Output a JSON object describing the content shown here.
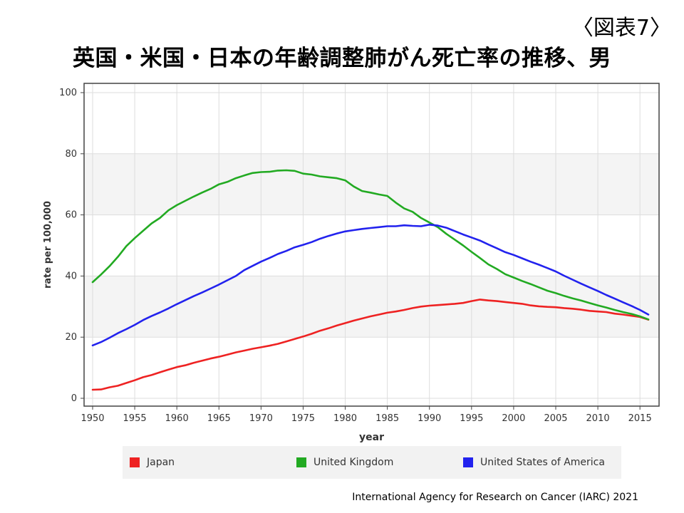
{
  "figure_label": "〈図表7〉",
  "title": "英国・米国・日本の年齢調整肺がん死亡率の推移、男",
  "source": "International Agency for Research on Cancer (IARC) 2021",
  "chart_data": {
    "type": "line",
    "xlabel": "year",
    "ylabel": "rate per 100,000",
    "xlim": [
      1950,
      2016
    ],
    "ylim": [
      0,
      100
    ],
    "x_ticks": [
      1950,
      1955,
      1960,
      1965,
      1970,
      1975,
      1980,
      1985,
      1990,
      1995,
      2000,
      2005,
      2010,
      2015
    ],
    "y_ticks": [
      0,
      20,
      40,
      60,
      80,
      100
    ],
    "grid": true,
    "legend_position": "bottom",
    "x": [
      1950,
      1951,
      1952,
      1953,
      1954,
      1955,
      1956,
      1957,
      1958,
      1959,
      1960,
      1961,
      1962,
      1963,
      1964,
      1965,
      1966,
      1967,
      1968,
      1969,
      1970,
      1971,
      1972,
      1973,
      1974,
      1975,
      1976,
      1977,
      1978,
      1979,
      1980,
      1981,
      1982,
      1983,
      1984,
      1985,
      1986,
      1987,
      1988,
      1989,
      1990,
      1991,
      1992,
      1993,
      1994,
      1995,
      1996,
      1997,
      1998,
      1999,
      2000,
      2001,
      2002,
      2003,
      2004,
      2005,
      2006,
      2007,
      2008,
      2009,
      2010,
      2011,
      2012,
      2013,
      2014,
      2015,
      2016
    ],
    "series": [
      {
        "name": "Japan",
        "color": "#ee2222",
        "values": [
          2.8,
          2.9,
          3.6,
          4.1,
          5.0,
          5.9,
          6.9,
          7.6,
          8.5,
          9.4,
          10.2,
          10.8,
          11.6,
          12.3,
          13.0,
          13.6,
          14.3,
          15.0,
          15.6,
          16.2,
          16.7,
          17.2,
          17.8,
          18.6,
          19.4,
          20.2,
          21.1,
          22.1,
          22.9,
          23.8,
          24.6,
          25.4,
          26.1,
          26.8,
          27.4,
          28.0,
          28.4,
          28.9,
          29.5,
          30.0,
          30.3,
          30.5,
          30.7,
          30.9,
          31.2,
          31.8,
          32.3,
          32.0,
          31.8,
          31.5,
          31.2,
          30.9,
          30.4,
          30.1,
          29.9,
          29.8,
          29.5,
          29.3,
          29.0,
          28.6,
          28.4,
          28.2,
          27.7,
          27.4,
          27.0,
          26.6,
          25.7
        ]
      },
      {
        "name": "United Kingdom",
        "color": "#22aa22",
        "values": [
          38.0,
          40.5,
          43.2,
          46.3,
          49.8,
          52.4,
          54.8,
          57.2,
          59.0,
          61.5,
          63.2,
          64.6,
          66.0,
          67.3,
          68.5,
          70.0,
          70.8,
          72.0,
          72.9,
          73.7,
          74.0,
          74.1,
          74.5,
          74.6,
          74.4,
          73.5,
          73.2,
          72.6,
          72.3,
          72.0,
          71.3,
          69.3,
          67.8,
          67.3,
          66.7,
          66.2,
          64.0,
          62.1,
          61.0,
          59.0,
          57.5,
          56.0,
          53.8,
          51.9,
          50.0,
          47.9,
          45.9,
          43.8,
          42.3,
          40.6,
          39.5,
          38.4,
          37.4,
          36.3,
          35.2,
          34.4,
          33.5,
          32.7,
          32.0,
          31.2,
          30.4,
          29.7,
          28.9,
          28.2,
          27.6,
          26.8,
          25.8
        ]
      },
      {
        "name": "United States of America",
        "color": "#2222ee",
        "values": [
          17.3,
          18.4,
          19.8,
          21.3,
          22.6,
          24.0,
          25.6,
          26.9,
          28.1,
          29.4,
          30.8,
          32.1,
          33.4,
          34.6,
          35.9,
          37.2,
          38.6,
          40.0,
          41.9,
          43.3,
          44.7,
          45.9,
          47.2,
          48.2,
          49.4,
          50.2,
          51.1,
          52.2,
          53.1,
          53.9,
          54.6,
          55.0,
          55.4,
          55.7,
          56.0,
          56.3,
          56.3,
          56.6,
          56.4,
          56.3,
          56.8,
          56.5,
          55.8,
          54.7,
          53.6,
          52.6,
          51.6,
          50.3,
          49.1,
          47.8,
          46.9,
          45.8,
          44.7,
          43.7,
          42.6,
          41.5,
          40.1,
          38.8,
          37.5,
          36.3,
          35.1,
          33.8,
          32.6,
          31.4,
          30.2,
          28.9,
          27.4
        ]
      }
    ]
  }
}
